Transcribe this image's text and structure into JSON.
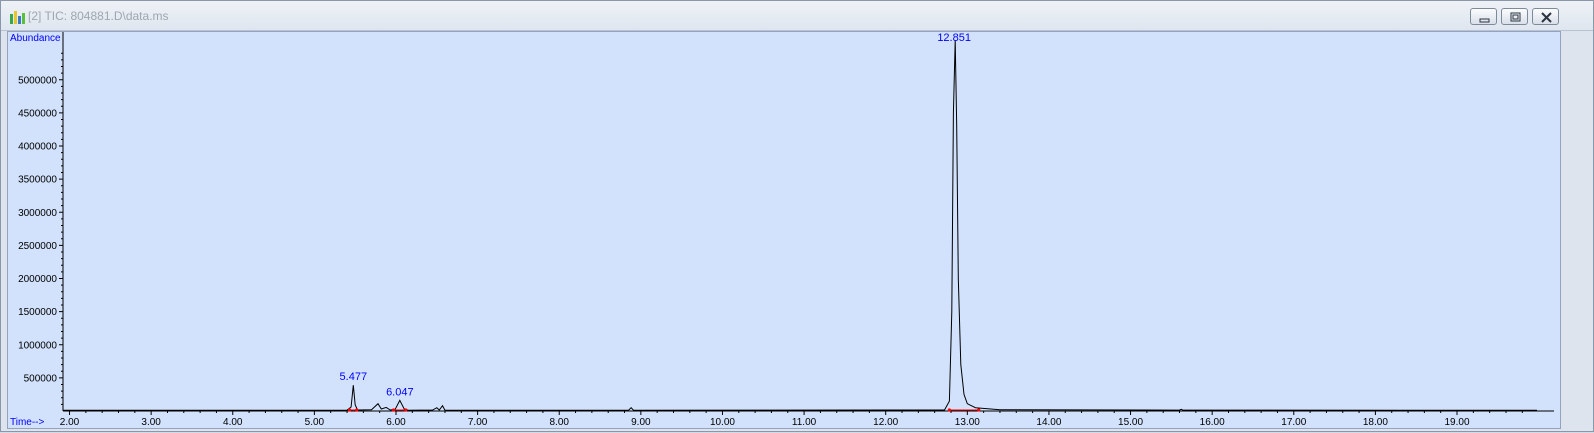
{
  "window": {
    "title": "[2] TIC: 804881.D\\data.ms",
    "app_icon": "chemstation-icon",
    "buttons": [
      {
        "name": "minimize-button",
        "icon": "minimize-icon"
      },
      {
        "name": "restore-button",
        "icon": "restore-icon"
      },
      {
        "name": "close-button",
        "icon": "close-icon"
      }
    ]
  },
  "chart_data": {
    "type": "line",
    "ylabel": "Abundance",
    "xlabel": "Time-->",
    "xlim": [
      1.92,
      19.98
    ],
    "ylim": [
      0,
      5600000
    ],
    "x_ticks": [
      "2.00",
      "3.00",
      "4.00",
      "5.00",
      "6.00",
      "7.00",
      "8.00",
      "9.00",
      "10.00",
      "11.00",
      "12.00",
      "13.00",
      "14.00",
      "15.00",
      "16.00",
      "17.00",
      "18.00",
      "19.00"
    ],
    "y_ticks": [
      "500000",
      "1000000",
      "1500000",
      "2000000",
      "2500000",
      "3000000",
      "3500000",
      "4000000",
      "4500000",
      "5000000"
    ],
    "peak_labels": [
      {
        "time": 5.477,
        "text": "5.477"
      },
      {
        "time": 6.047,
        "text": "6.047"
      },
      {
        "time": 12.851,
        "text": "12.851"
      }
    ],
    "series": [
      {
        "points": [
          [
            1.92,
            10000
          ],
          [
            5.4,
            12000
          ],
          [
            5.45,
            60000
          ],
          [
            5.477,
            390000
          ],
          [
            5.5,
            90000
          ],
          [
            5.53,
            15000
          ],
          [
            5.7,
            18000
          ],
          [
            5.78,
            110000
          ],
          [
            5.82,
            30000
          ],
          [
            5.88,
            55000
          ],
          [
            5.93,
            15000
          ],
          [
            5.99,
            25000
          ],
          [
            6.047,
            160000
          ],
          [
            6.1,
            30000
          ],
          [
            6.15,
            12000
          ],
          [
            6.45,
            15000
          ],
          [
            6.5,
            50000
          ],
          [
            6.53,
            15000
          ],
          [
            6.57,
            80000
          ],
          [
            6.6,
            12000
          ],
          [
            8.85,
            12000
          ],
          [
            8.88,
            50000
          ],
          [
            8.91,
            12000
          ],
          [
            12.72,
            15000
          ],
          [
            12.78,
            150000
          ],
          [
            12.81,
            1500000
          ],
          [
            12.83,
            4500000
          ],
          [
            12.851,
            5600000
          ],
          [
            12.87,
            4300000
          ],
          [
            12.89,
            2000000
          ],
          [
            12.92,
            700000
          ],
          [
            12.96,
            250000
          ],
          [
            13.0,
            110000
          ],
          [
            13.1,
            50000
          ],
          [
            13.25,
            35000
          ],
          [
            13.4,
            20000
          ],
          [
            15.6,
            14000
          ],
          [
            15.62,
            25000
          ],
          [
            15.64,
            13000
          ],
          [
            19.98,
            10000
          ]
        ],
        "color": "#000000"
      }
    ],
    "baselines": [
      {
        "start": 5.43,
        "end": 5.52
      },
      {
        "start": 5.97,
        "end": 6.12
      },
      {
        "start": 12.78,
        "end": 13.14
      }
    ],
    "colors": {
      "trace": "#000000",
      "labels": "#0000ff",
      "baseline": "#ff0000",
      "background": "#d2e2fc"
    }
  }
}
